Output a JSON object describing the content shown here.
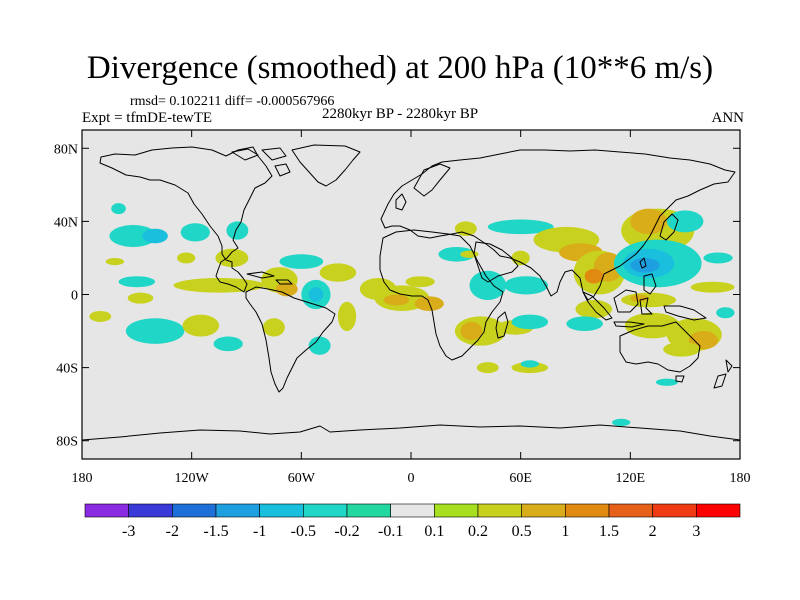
{
  "header": {
    "title": "Divergence (smoothed) at 200 hPa (10**6 m/s)",
    "stats": "rmsd= 0.102211 diff= -0.000567966",
    "period": "2280kyr BP - 2280kyr BP",
    "experiment": "Expt = tfmDE-tewTE",
    "season": "ANN"
  },
  "chart_data": {
    "type": "heatmap",
    "title": "Divergence (smoothed) at 200 hPa (10**6 m/s)",
    "xlim": [
      -180,
      180
    ],
    "ylim": [
      -90,
      90
    ],
    "x_ticks": [
      -180,
      -120,
      -60,
      0,
      60,
      120,
      180
    ],
    "x_tick_labels": [
      "180",
      "120W",
      "60W",
      "0",
      "60E",
      "120E",
      "180"
    ],
    "y_ticks": [
      80,
      40,
      0,
      -40,
      -80
    ],
    "y_tick_labels": [
      "80N",
      "40N",
      "0",
      "40S",
      "80S"
    ],
    "colorbar": {
      "levels": [
        "-3",
        "-2",
        "-1.5",
        "-1",
        "-0.5",
        "-0.2",
        "-0.1",
        "0.1",
        "0.2",
        "0.5",
        "1",
        "1.5",
        "2",
        "3"
      ],
      "colors": [
        "#8a2be2",
        "#3a3ad8",
        "#1f6fd8",
        "#1ea0e0",
        "#19bfdc",
        "#20d6c6",
        "#22d8a0",
        "#e6e6e6",
        "#a6e020",
        "#c8d21e",
        "#d9ac19",
        "#e08a12",
        "#e6601a",
        "#f03a14",
        "#ff0000"
      ]
    },
    "blobs": [
      {
        "lon": -152,
        "lat": 32,
        "rlon": 13,
        "rlat": 6,
        "level": "-0.2"
      },
      {
        "lon": -140,
        "lat": 32,
        "rlon": 7,
        "rlat": 4,
        "level": "-0.5"
      },
      {
        "lon": -160,
        "lat": 47,
        "rlon": 4,
        "rlat": 3,
        "level": "-0.2"
      },
      {
        "lon": -118,
        "lat": 34,
        "rlon": 8,
        "rlat": 5,
        "level": "-0.2"
      },
      {
        "lon": -95,
        "lat": 35,
        "rlon": 6,
        "rlat": 5,
        "level": "-0.2"
      },
      {
        "lon": -98,
        "lat": 20,
        "rlon": 9,
        "rlat": 5,
        "level": "0.2"
      },
      {
        "lon": -123,
        "lat": 20,
        "rlon": 5,
        "rlat": 3,
        "level": "0.2"
      },
      {
        "lon": -150,
        "lat": 7,
        "rlon": 10,
        "rlat": 3,
        "level": "-0.2"
      },
      {
        "lon": -162,
        "lat": 18,
        "rlon": 5,
        "rlat": 2,
        "level": "0.2"
      },
      {
        "lon": -148,
        "lat": -2,
        "rlon": 7,
        "rlat": 3,
        "level": "0.2"
      },
      {
        "lon": -105,
        "lat": 5,
        "rlon": 25,
        "rlat": 4,
        "level": "0.2"
      },
      {
        "lon": -72,
        "lat": 8,
        "rlon": 10,
        "rlat": 7,
        "level": "0.2"
      },
      {
        "lon": -68,
        "lat": 3,
        "rlon": 6,
        "rlat": 4,
        "level": "0.5"
      },
      {
        "lon": -60,
        "lat": 18,
        "rlon": 12,
        "rlat": 4,
        "level": "-0.2"
      },
      {
        "lon": -40,
        "lat": 12,
        "rlon": 10,
        "rlat": 5,
        "level": "0.2"
      },
      {
        "lon": -52,
        "lat": 0,
        "rlon": 8,
        "rlat": 8,
        "level": "-0.2"
      },
      {
        "lon": -52,
        "lat": 0,
        "rlon": 4,
        "rlat": 4,
        "level": "-0.5"
      },
      {
        "lon": -35,
        "lat": -12,
        "rlon": 5,
        "rlat": 8,
        "level": "0.2"
      },
      {
        "lon": -140,
        "lat": -20,
        "rlon": 16,
        "rlat": 7,
        "level": "-0.2"
      },
      {
        "lon": -170,
        "lat": -12,
        "rlon": 6,
        "rlat": 3,
        "level": "0.2"
      },
      {
        "lon": -115,
        "lat": -17,
        "rlon": 10,
        "rlat": 6,
        "level": "0.2"
      },
      {
        "lon": -100,
        "lat": -27,
        "rlon": 8,
        "rlat": 4,
        "level": "-0.2"
      },
      {
        "lon": -75,
        "lat": -18,
        "rlon": 6,
        "rlat": 5,
        "level": "0.2"
      },
      {
        "lon": -50,
        "lat": -28,
        "rlon": 6,
        "rlat": 5,
        "level": "-0.2"
      },
      {
        "lon": -18,
        "lat": 3,
        "rlon": 10,
        "rlat": 6,
        "level": "0.2"
      },
      {
        "lon": -5,
        "lat": -2,
        "rlon": 15,
        "rlat": 7,
        "level": "0.2"
      },
      {
        "lon": -8,
        "lat": -3,
        "rlon": 7,
        "rlat": 3,
        "level": "0.5"
      },
      {
        "lon": 10,
        "lat": -5,
        "rlon": 8,
        "rlat": 4,
        "level": "0.5"
      },
      {
        "lon": 5,
        "lat": 7,
        "rlon": 8,
        "rlat": 3,
        "level": "0.2"
      },
      {
        "lon": 25,
        "lat": 22,
        "rlon": 10,
        "rlat": 4,
        "level": "-0.2"
      },
      {
        "lon": 32,
        "lat": 22,
        "rlon": 5,
        "rlat": 2,
        "level": "0.2"
      },
      {
        "lon": 60,
        "lat": 20,
        "rlon": 5,
        "rlat": 4,
        "level": "0.2"
      },
      {
        "lon": 42,
        "lat": 5,
        "rlon": 10,
        "rlat": 8,
        "level": "-0.2"
      },
      {
        "lon": 63,
        "lat": 5,
        "rlon": 12,
        "rlat": 5,
        "level": "-0.2"
      },
      {
        "lon": 38,
        "lat": -20,
        "rlon": 14,
        "rlat": 8,
        "level": "0.2"
      },
      {
        "lon": 33,
        "lat": -20,
        "rlon": 6,
        "rlat": 5,
        "level": "0.5"
      },
      {
        "lon": 57,
        "lat": -18,
        "rlon": 10,
        "rlat": 4,
        "level": "0.2"
      },
      {
        "lon": 65,
        "lat": -15,
        "rlon": 10,
        "rlat": 4,
        "level": "-0.2"
      },
      {
        "lon": 42,
        "lat": -40,
        "rlon": 6,
        "rlat": 3,
        "level": "0.2"
      },
      {
        "lon": 65,
        "lat": -40,
        "rlon": 10,
        "rlat": 3,
        "level": "0.2"
      },
      {
        "lon": 65,
        "lat": -38,
        "rlon": 5,
        "rlat": 2,
        "level": "-0.2"
      },
      {
        "lon": 30,
        "lat": 36,
        "rlon": 6,
        "rlat": 4,
        "level": "0.2"
      },
      {
        "lon": 60,
        "lat": 37,
        "rlon": 18,
        "rlat": 4,
        "level": "-0.2"
      },
      {
        "lon": 85,
        "lat": 30,
        "rlon": 18,
        "rlat": 7,
        "level": "0.2"
      },
      {
        "lon": 93,
        "lat": 23,
        "rlon": 12,
        "rlat": 5,
        "level": "0.5"
      },
      {
        "lon": 103,
        "lat": 12,
        "rlon": 14,
        "rlat": 12,
        "level": "0.2"
      },
      {
        "lon": 108,
        "lat": 15,
        "rlon": 8,
        "rlat": 8,
        "level": "0.5"
      },
      {
        "lon": 100,
        "lat": 10,
        "rlon": 5,
        "rlat": 4,
        "level": "1"
      },
      {
        "lon": 135,
        "lat": 35,
        "rlon": 20,
        "rlat": 12,
        "level": "0.2"
      },
      {
        "lon": 130,
        "lat": 40,
        "rlon": 10,
        "rlat": 7,
        "level": "0.5"
      },
      {
        "lon": 150,
        "lat": 40,
        "rlon": 10,
        "rlat": 6,
        "level": "-0.2"
      },
      {
        "lon": 135,
        "lat": 17,
        "rlon": 24,
        "rlat": 13,
        "level": "-0.2"
      },
      {
        "lon": 130,
        "lat": 17,
        "rlon": 14,
        "rlat": 8,
        "level": "-0.5"
      },
      {
        "lon": 128,
        "lat": 16,
        "rlon": 8,
        "rlat": 4,
        "level": "-1"
      },
      {
        "lon": 168,
        "lat": 20,
        "rlon": 8,
        "rlat": 3,
        "level": "-0.2"
      },
      {
        "lon": 165,
        "lat": 4,
        "rlon": 12,
        "rlat": 3,
        "level": "0.2"
      },
      {
        "lon": 130,
        "lat": -3,
        "rlon": 15,
        "rlat": 4,
        "level": "0.2"
      },
      {
        "lon": 125,
        "lat": -2,
        "rlon": 5,
        "rlat": 2,
        "level": "0.5"
      },
      {
        "lon": 100,
        "lat": -8,
        "rlon": 10,
        "rlat": 5,
        "level": "0.2"
      },
      {
        "lon": 95,
        "lat": -16,
        "rlon": 10,
        "rlat": 4,
        "level": "-0.2"
      },
      {
        "lon": 132,
        "lat": -17,
        "rlon": 15,
        "rlat": 7,
        "level": "0.2"
      },
      {
        "lon": 155,
        "lat": -22,
        "rlon": 15,
        "rlat": 9,
        "level": "0.2"
      },
      {
        "lon": 160,
        "lat": -25,
        "rlon": 8,
        "rlat": 5,
        "level": "0.5"
      },
      {
        "lon": 148,
        "lat": -30,
        "rlon": 10,
        "rlat": 4,
        "level": "0.2"
      },
      {
        "lon": 140,
        "lat": -48,
        "rlon": 6,
        "rlat": 2,
        "level": "-0.2"
      },
      {
        "lon": 172,
        "lat": -10,
        "rlon": 5,
        "rlat": 3,
        "level": "-0.2"
      },
      {
        "lon": 115,
        "lat": -70,
        "rlon": 5,
        "rlat": 2,
        "level": "-0.2"
      }
    ]
  }
}
